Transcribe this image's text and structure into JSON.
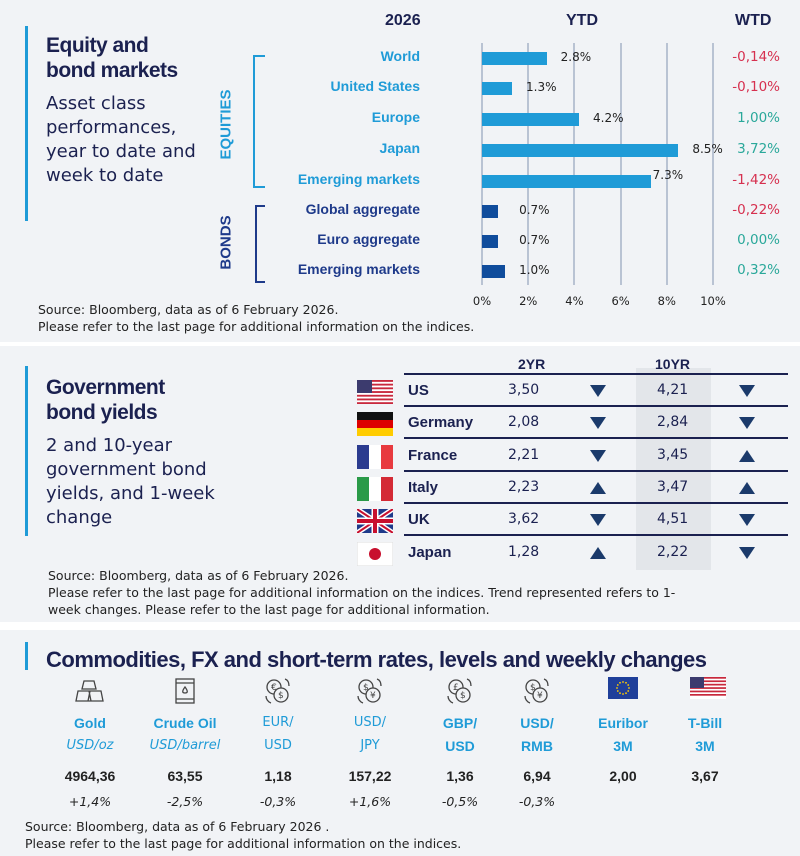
{
  "equity": {
    "title_line1": "Equity and",
    "title_line2": "bond markets",
    "subtitle": "Asset class performances, year to date and week to date",
    "year_header": "2026",
    "ytd_header": "YTD",
    "wtd_header": "WTD",
    "group_equities": "EQUITIES",
    "group_bonds": "BONDS",
    "source_line1": "Source: Bloomberg, data as of 6 February 2026.",
    "source_line2": "Please refer to the last page for additional information on the indices.",
    "colors": {
      "equities": "#1f9bd7",
      "bonds": "#0f4c9c",
      "negative": "#d6304f",
      "positive": "#2aa89a"
    }
  },
  "chart_data": {
    "type": "bar",
    "orientation": "horizontal",
    "categories": [
      "World",
      "United States",
      "Europe",
      "Japan",
      "Emerging  markets",
      "Global  aggregate",
      "Euro  aggregate",
      "Emerging  markets"
    ],
    "groups": [
      "EQUITIES",
      "EQUITIES",
      "EQUITIES",
      "EQUITIES",
      "EQUITIES",
      "BONDS",
      "BONDS",
      "BONDS"
    ],
    "values": [
      2.8,
      1.3,
      4.2,
      8.5,
      7.3,
      0.7,
      0.7,
      1.0
    ],
    "value_labels": [
      "2.8%",
      "1.3%",
      "4.2%",
      "8.5%",
      "7.3%",
      "0.7%",
      "0.7%",
      "1.0%"
    ],
    "wtd": [
      "-0,14%",
      "-0,10%",
      "1,00%",
      "3,72%",
      "-1,42%",
      "-0,22%",
      "0,00%",
      "0,32%"
    ],
    "xlim": [
      0,
      10
    ],
    "xticks": [
      "0%",
      "2%",
      "4%",
      "6%",
      "8%",
      "10%"
    ],
    "grid": true,
    "title": "YTD"
  },
  "yields": {
    "title_line1": "Government",
    "title_line2": "bond yields",
    "subtitle": "2 and 10-year government bond yields, and 1-week change",
    "col_2yr": "2YR",
    "col_10yr": "10YR",
    "rows": [
      {
        "country": "US",
        "flag": "us-flag",
        "y2": "3,50",
        "t2": "down",
        "y10": "4,21",
        "t10": "down"
      },
      {
        "country": "Germany",
        "flag": "germany-flag",
        "y2": "2,08",
        "t2": "down",
        "y10": "2,84",
        "t10": "down"
      },
      {
        "country": "France",
        "flag": "france-flag",
        "y2": "2,21",
        "t2": "down",
        "y10": "3,45",
        "t10": "up"
      },
      {
        "country": "Italy",
        "flag": "italy-flag",
        "y2": "2,23",
        "t2": "up",
        "y10": "3,47",
        "t10": "up"
      },
      {
        "country": "UK",
        "flag": "uk-flag",
        "y2": "3,62",
        "t2": "down",
        "y10": "4,51",
        "t10": "down"
      },
      {
        "country": "Japan",
        "flag": "japan-flag",
        "y2": "1,28",
        "t2": "up",
        "y10": "2,22",
        "t10": "down"
      }
    ],
    "source_line1": "Source: Bloomberg, data as of 6 February 2026.",
    "source_line2": "Please refer to the last page for additional information on the indices. Trend represented refers to 1-",
    "source_line3": "week changes. Please refer to the last page for additional information."
  },
  "commodities": {
    "title": "Commodities, FX and short-term rates, levels and weekly changes",
    "items": [
      {
        "name": "Gold",
        "unit": "USD/oz",
        "value": "4964,36",
        "change": "+1,4%",
        "icon": "gold-bars-icon"
      },
      {
        "name": "Crude Oil",
        "unit": "USD/barrel",
        "value": "63,55",
        "change": "-2,5%",
        "icon": "oil-barrel-icon"
      },
      {
        "name": "EUR/",
        "unit": "USD",
        "value": "1,18",
        "change": "-0,3%",
        "icon": "euro-dollar-exchange-icon"
      },
      {
        "name": "USD/",
        "unit": "JPY",
        "value": "157,22",
        "change": "+1,6%",
        "icon": "dollar-yen-exchange-icon"
      },
      {
        "name": "GBP/",
        "unit": "USD",
        "value": "1,36",
        "change": "-0,5%",
        "icon": "pound-dollar-exchange-icon"
      },
      {
        "name": "USD/",
        "unit": "RMB",
        "value": "6,94",
        "change": "-0,3%",
        "icon": "dollar-yuan-exchange-icon"
      },
      {
        "name": "Euribor",
        "unit": "3M",
        "value": "2,00",
        "change": "",
        "icon": "eu-flag-icon"
      },
      {
        "name": "T-Bill",
        "unit": "3M",
        "value": "3,67",
        "change": "",
        "icon": "us-flag-icon"
      }
    ],
    "source_line1": "Source: Bloomberg, data as of 6 February 2026 .",
    "source_line2": "Please refer to the last page for additional information on the indices."
  }
}
